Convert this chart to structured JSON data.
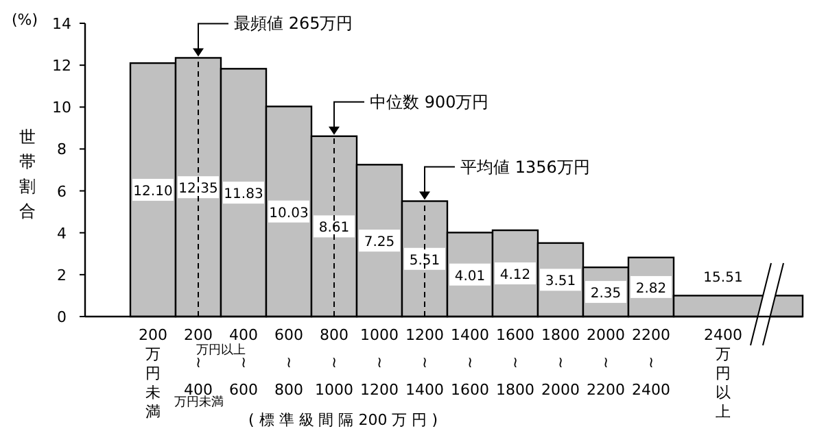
{
  "chart_data": {
    "type": "bar",
    "categories": [
      "200万円未満",
      "200\n≀\n400",
      "400\n≀\n600",
      "600\n≀\n800",
      "800\n≀\n1000",
      "1000\n≀\n1200",
      "1200\n≀\n1400",
      "1400\n≀\n1600",
      "1600\n≀\n1800",
      "1800\n≀\n2000",
      "2000\n≀\n2200",
      "2200\n≀\n2400",
      "2400万円以上"
    ],
    "series": [
      {
        "color": "#c0c0c0",
        "values": [
          12.1,
          12.35,
          11.83,
          10.03,
          8.61,
          7.25,
          5.51,
          4.01,
          4.12,
          3.51,
          2.35,
          2.82,
          null
        ],
        "value_labels": [
          "12.10",
          "12.35",
          "11.83",
          "10.03",
          "8.61",
          "7.25",
          "5.51",
          "4.01",
          "4.12",
          "3.51",
          "2.35",
          "2.82",
          null
        ]
      },
      {
        "color": "#c0c0c0",
        "values": [
          null,
          null,
          null,
          null,
          null,
          null,
          null,
          null,
          null,
          null,
          null,
          null,
          1.0
        ]
      }
    ],
    "ylabel": "世帯割合",
    "xlabel": "( 標 準 級 間 隔 200 万 円 )",
    "ref_lines": [
      {
        "axis": "x",
        "value": "200\n≀\n400",
        "line_style": "dashed"
      },
      {
        "axis": "x",
        "value": "800\n≀\n1000",
        "line_style": "dashed"
      },
      {
        "axis": "x",
        "value": "1200\n≀\n1400",
        "line_style": "dashed"
      }
    ],
    "ylim": [
      0,
      14
    ],
    "yticks": [
      0,
      2,
      4,
      6,
      8,
      10,
      12,
      14
    ],
    "annotations": [
      "(%)",
      {
        "text": "最頻値 265万円",
        "x": "200\n≀\n400",
        "y": 12.35
      },
      {
        "text": "中位数 900万円",
        "x": "800\n≀\n1000",
        "y": 8.61
      },
      {
        "text": "平均値 1356万円",
        "x": "1200\n≀\n1400",
        "y": 5.51
      },
      {
        "text": "15.51",
        "x": "2400万円以上",
        "y": 1.0
      },
      "万円以上",
      "万円未満"
    ]
  }
}
